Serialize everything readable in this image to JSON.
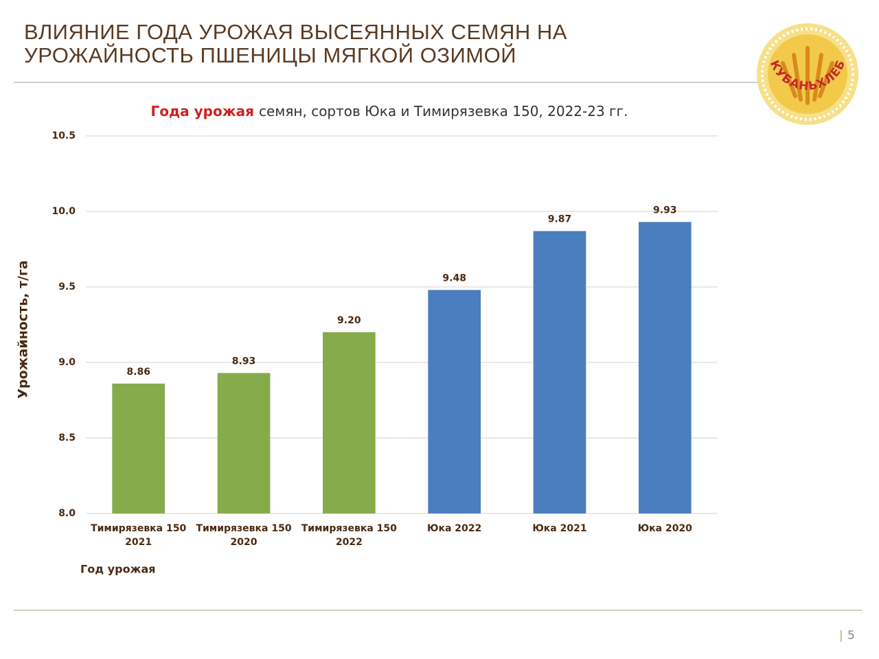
{
  "slide": {
    "title_line1": "ВЛИЯНИЕ ГОДА УРОЖАЯ ВЫСЕЯННЫХ СЕМЯН НА",
    "title_line2": "УРОЖАЙНОСТЬ ПШЕНИЦЫ МЯГКОЙ ОЗИМОЙ",
    "logo_text": "КУБАНЬХЛЕБ",
    "page_number": "5"
  },
  "chart_data": {
    "type": "bar",
    "title_highlight": "Года урожая",
    "title": "семян, сортов Юка и Тимирязевка 150, 2022-23 гг.",
    "y_label": "Урожайность, т/га",
    "x_label": "Год урожая",
    "categories": [
      "Тимирязевка 150 2021",
      "Тимирязевка 150 2020",
      "Тимирязевка 150 2022",
      "Юка 2022",
      "Юка 2021",
      "Юка 2020"
    ],
    "values": [
      8.86,
      8.93,
      9.2,
      9.48,
      9.87,
      9.93
    ],
    "value_labels": [
      "8.86",
      "8.93",
      "9.20",
      "9.48",
      "9.87",
      "9.93"
    ],
    "colors": [
      "#86ab4a",
      "#86ab4a",
      "#86ab4a",
      "#4a7ebf",
      "#4a7ebf",
      "#4a7ebf"
    ],
    "ylim": [
      8.0,
      10.5
    ],
    "yticks": [
      {
        "value": 8.0,
        "label": "8.0"
      },
      {
        "value": 8.5,
        "label": "8.5"
      },
      {
        "value": 9.0,
        "label": "9.0"
      },
      {
        "value": 9.5,
        "label": "9.5"
      },
      {
        "value": 10.0,
        "label": "10.0"
      },
      {
        "value": 10.5,
        "label": "10.5"
      }
    ],
    "grid": true
  }
}
